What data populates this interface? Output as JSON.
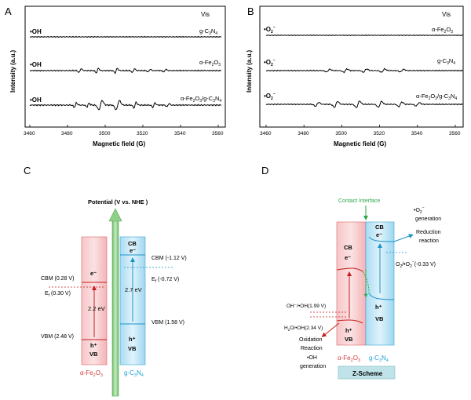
{
  "panelA": {
    "label": "A",
    "condition": "Vis",
    "ylabel": "Intensity (a.u.)",
    "xlabel": "Magnetic field (G)",
    "ticks": [
      "3460",
      "3480",
      "3500",
      "3520",
      "3540",
      "3560"
    ],
    "traces": [
      {
        "species": "•OH",
        "name": "g-C",
        "sub": "3",
        "mid": "N",
        "sub2": "4"
      },
      {
        "species": "•OH",
        "name": "α-Fe",
        "sub": "2",
        "mid": "O",
        "sub2": "3"
      },
      {
        "species": "•OH",
        "name": "α-Fe",
        "sub": "2",
        "mid": "O",
        "sub2": "3",
        "tail": "/g-C",
        "sub3": "3",
        "tail2": "N",
        "sub4": "4"
      }
    ]
  },
  "panelB": {
    "label": "B",
    "condition": "Vis",
    "ylabel": "Intensity (a.u.)",
    "xlabel": "Magnetic field (G)",
    "ticks": [
      "3460",
      "3480",
      "3500",
      "3520",
      "3540",
      "3560"
    ],
    "traces": [
      {
        "species": "•O",
        "ssub": "2",
        "ssup": "−",
        "name": "α-Fe",
        "sub": "2",
        "mid": "O",
        "sub2": "3"
      },
      {
        "species": "•O",
        "ssub": "2",
        "ssup": "−",
        "name": "g-C",
        "sub": "3",
        "mid": "N",
        "sub2": "4"
      },
      {
        "species": "•O",
        "ssub": "2",
        "ssup": "−",
        "name": "α-Fe",
        "sub": "2",
        "mid": "O",
        "sub2": "3",
        "tail": "/g-C",
        "sub3": "3",
        "tail2": "N",
        "sub4": "4"
      }
    ]
  },
  "panelC": {
    "label": "C",
    "axis": "Potential (V vs. NHE )",
    "fe": {
      "cbm": "CBM (0.28 V)",
      "ef": "E",
      "ef_sub": "f",
      "ef_val": " (0.30 V)",
      "gap": "2.2 eV",
      "vbm": "VBM (2.48 V)",
      "e": "e⁻",
      "h": "h⁺",
      "vb": "VB",
      "name": "α-Fe",
      "sub": "2",
      "mid": "O",
      "sub2": "3"
    },
    "gcn": {
      "cb": "CB",
      "e": "e⁻",
      "cbm": "CBM (-1.12 V)",
      "ef": "E",
      "ef_sub": "f",
      "ef_val": " (-0.72 V)",
      "gap": "2.7 eV",
      "vbm": "VBM (1.58 V)",
      "h": "h⁺",
      "vb": "VB",
      "name": "g-C",
      "sub": "3",
      "mid": "N",
      "sub2": "4"
    },
    "colors": {
      "fe": "#d43a3a",
      "gcn": "#1aa0d8",
      "arrow": "#8fcf8a"
    }
  },
  "panelD": {
    "label": "D",
    "contact": "Contact Interface",
    "o2_species": "•O",
    "o2_sub": "2",
    "o2_sup": "−",
    "o2_gen": "generation",
    "reduction1": "Reduction",
    "reduction2": "reaction",
    "o2_couple": "O",
    "o2_couple_sub": "2",
    "o2_couple_mid": "/•O",
    "o2_couple_sub2": "2",
    "o2_couple_sup": "−",
    "o2_couple_val": "(-0.33 V)",
    "oh1": "OH⁻/•OH(1.99 V)",
    "oh2_a": "H",
    "oh2_sub": "2",
    "oh2_b": "O/•OH(2.34 V)",
    "oxidation1": "Oxidation",
    "oxidation2": "Reaction",
    "oxidation3": "•OH",
    "oxidation4": "generation",
    "fe_cb": "CB",
    "fe_e": "e⁻",
    "fe_h": "h⁺",
    "fe_vb": "VB",
    "gcn_cb": "CB",
    "gcn_e": "e⁻",
    "gcn_h": "h⁺",
    "gcn_vb": "VB",
    "fe_name": "α-Fe",
    "fe_sub": "2",
    "fe_mid": "O",
    "fe_sub2": "3",
    "gcn_name": "g-C",
    "gcn_sub": "3",
    "gcn_mid": "N",
    "gcn_sub2": "4",
    "scheme": "Z-Scheme"
  }
}
